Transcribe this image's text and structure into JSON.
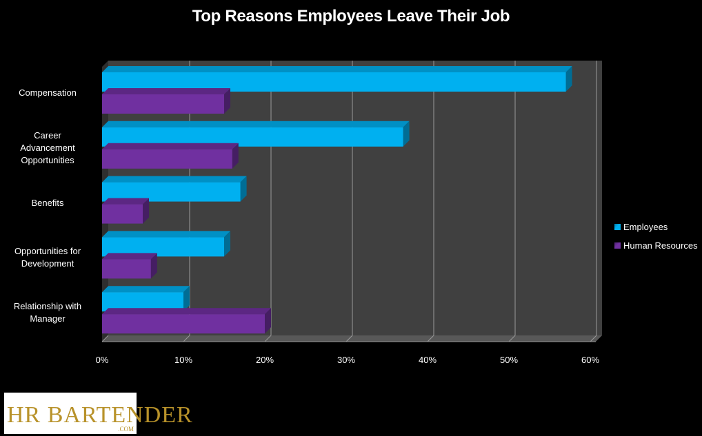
{
  "chart_data": {
    "type": "bar",
    "orientation": "horizontal",
    "title": "Top Reasons Employees Leave Their Job",
    "categories": [
      "Compensation",
      "Career Advancement Opportunities",
      "Benefits",
      "Opportunities for Development",
      "Relationship with Manager"
    ],
    "category_lines": [
      [
        "Compensation"
      ],
      [
        "Career",
        "Advancement",
        "Opportunities"
      ],
      [
        "Benefits"
      ],
      [
        "Opportunities for",
        "Development"
      ],
      [
        "Relationship with",
        "Manager"
      ]
    ],
    "series": [
      {
        "name": "Employees",
        "values": [
          57,
          37,
          17,
          15,
          10
        ],
        "color": "#00b0f0"
      },
      {
        "name": "Human Resources",
        "values": [
          15,
          16,
          5,
          6,
          20
        ],
        "color": "#7030a0"
      }
    ],
    "xlim": [
      0,
      60
    ],
    "xticks": [
      "0%",
      "10%",
      "20%",
      "30%",
      "40%",
      "50%",
      "60%"
    ],
    "grid": true,
    "legend_position": "right"
  },
  "logo": {
    "text": "HR BARTENDER",
    "sub": ".COM"
  }
}
